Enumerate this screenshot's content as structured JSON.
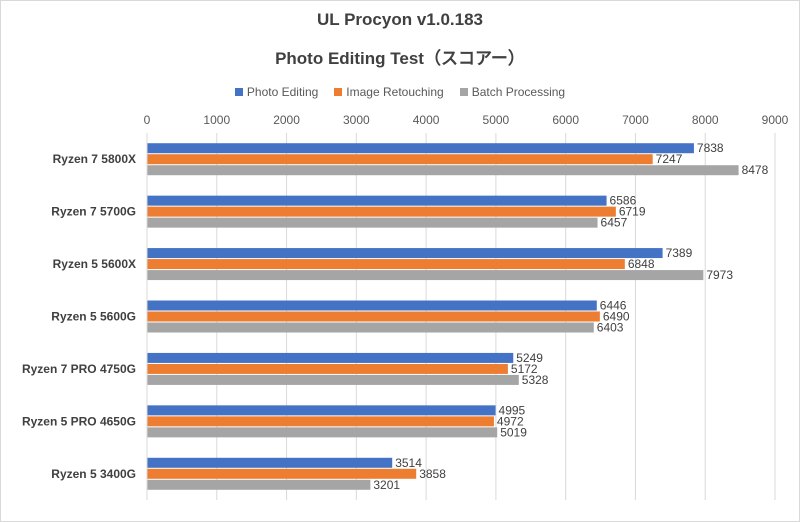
{
  "chart_data": {
    "type": "bar",
    "orientation": "horizontal",
    "title": "UL Procyon v1.0.183",
    "subtitle": "Photo Editing Test（スコアー）",
    "xlim": [
      0,
      9000
    ],
    "xticks": [
      0,
      1000,
      2000,
      3000,
      4000,
      5000,
      6000,
      7000,
      8000,
      9000
    ],
    "grid": true,
    "legend_position": "top",
    "categories": [
      "Ryzen 7 5800X",
      "Ryzen 7 5700G",
      "Ryzen 5 5600X",
      "Ryzen 5 5600G",
      "Ryzen 7 PRO 4750G",
      "Ryzen 5 PRO 4650G",
      "Ryzen 5 3400G"
    ],
    "series": [
      {
        "name": "Photo Editing",
        "color": "#4472c4",
        "values": [
          7838,
          6586,
          7389,
          6446,
          5249,
          4995,
          3514
        ]
      },
      {
        "name": "Image Retouching",
        "color": "#ed7d31",
        "values": [
          7247,
          6719,
          6848,
          6490,
          5172,
          4972,
          3858
        ]
      },
      {
        "name": "Batch Processing",
        "color": "#a5a5a5",
        "values": [
          8478,
          6457,
          7973,
          6403,
          5328,
          5019,
          3201
        ]
      }
    ]
  }
}
